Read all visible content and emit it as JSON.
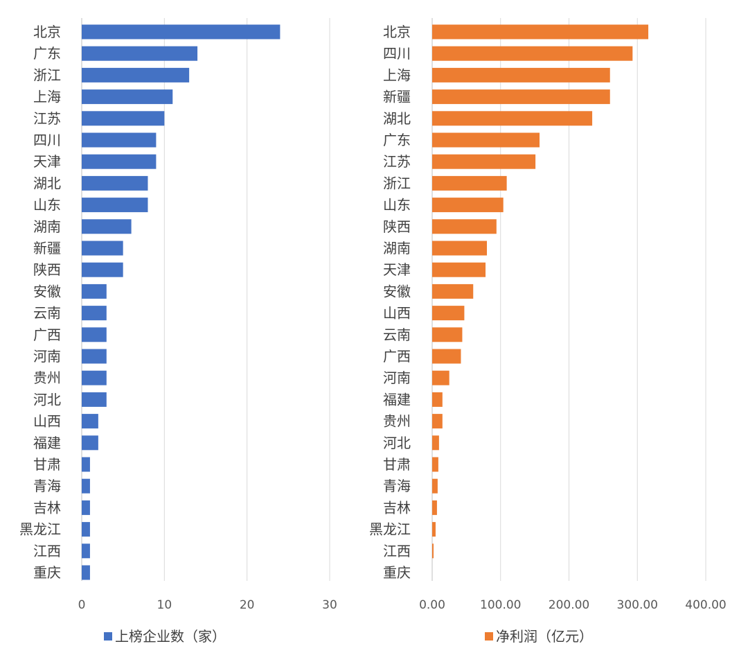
{
  "chart_data": [
    {
      "type": "bar",
      "orientation": "horizontal",
      "categories": [
        "北京",
        "广东",
        "浙江",
        "上海",
        "江苏",
        "四川",
        "天津",
        "湖北",
        "山东",
        "湖南",
        "新疆",
        "陕西",
        "安徽",
        "云南",
        "广西",
        "河南",
        "贵州",
        "河北",
        "山西",
        "福建",
        "甘肃",
        "青海",
        "吉林",
        "黑龙江",
        "江西",
        "重庆"
      ],
      "series": [
        {
          "name": "上榜企业数（家）",
          "color": "#4472C4",
          "values": [
            24,
            14,
            13,
            11,
            10,
            9,
            9,
            8,
            8,
            6,
            5,
            5,
            3,
            3,
            3,
            3,
            3,
            3,
            2,
            2,
            1,
            1,
            1,
            1,
            1,
            1
          ]
        }
      ],
      "xlim": [
        0,
        30
      ],
      "ticks": [
        "0",
        "10",
        "20",
        "30"
      ],
      "grid": true,
      "legend_position": "bottom"
    },
    {
      "type": "bar",
      "orientation": "horizontal",
      "categories": [
        "北京",
        "四川",
        "上海",
        "新疆",
        "湖北",
        "广东",
        "江苏",
        "浙江",
        "山东",
        "陕西",
        "湖南",
        "天津",
        "安徽",
        "山西",
        "云南",
        "广西",
        "河南",
        "福建",
        "贵州",
        "河北",
        "甘肃",
        "青海",
        "吉林",
        "黑龙江",
        "江西",
        "重庆"
      ],
      "series": [
        {
          "name": "净利润（亿元）",
          "color": "#ED7D31",
          "values": [
            316,
            293,
            260,
            260,
            234,
            157,
            151,
            109,
            104,
            94,
            80,
            78,
            60,
            47,
            44,
            42,
            25,
            15,
            15,
            10,
            9,
            8,
            7,
            5,
            2,
            0
          ]
        }
      ],
      "xlim": [
        0,
        400
      ],
      "ticks": [
        "0.00",
        "100.00",
        "200.00",
        "300.00",
        "400.00"
      ],
      "grid": true,
      "legend_position": "bottom"
    }
  ]
}
